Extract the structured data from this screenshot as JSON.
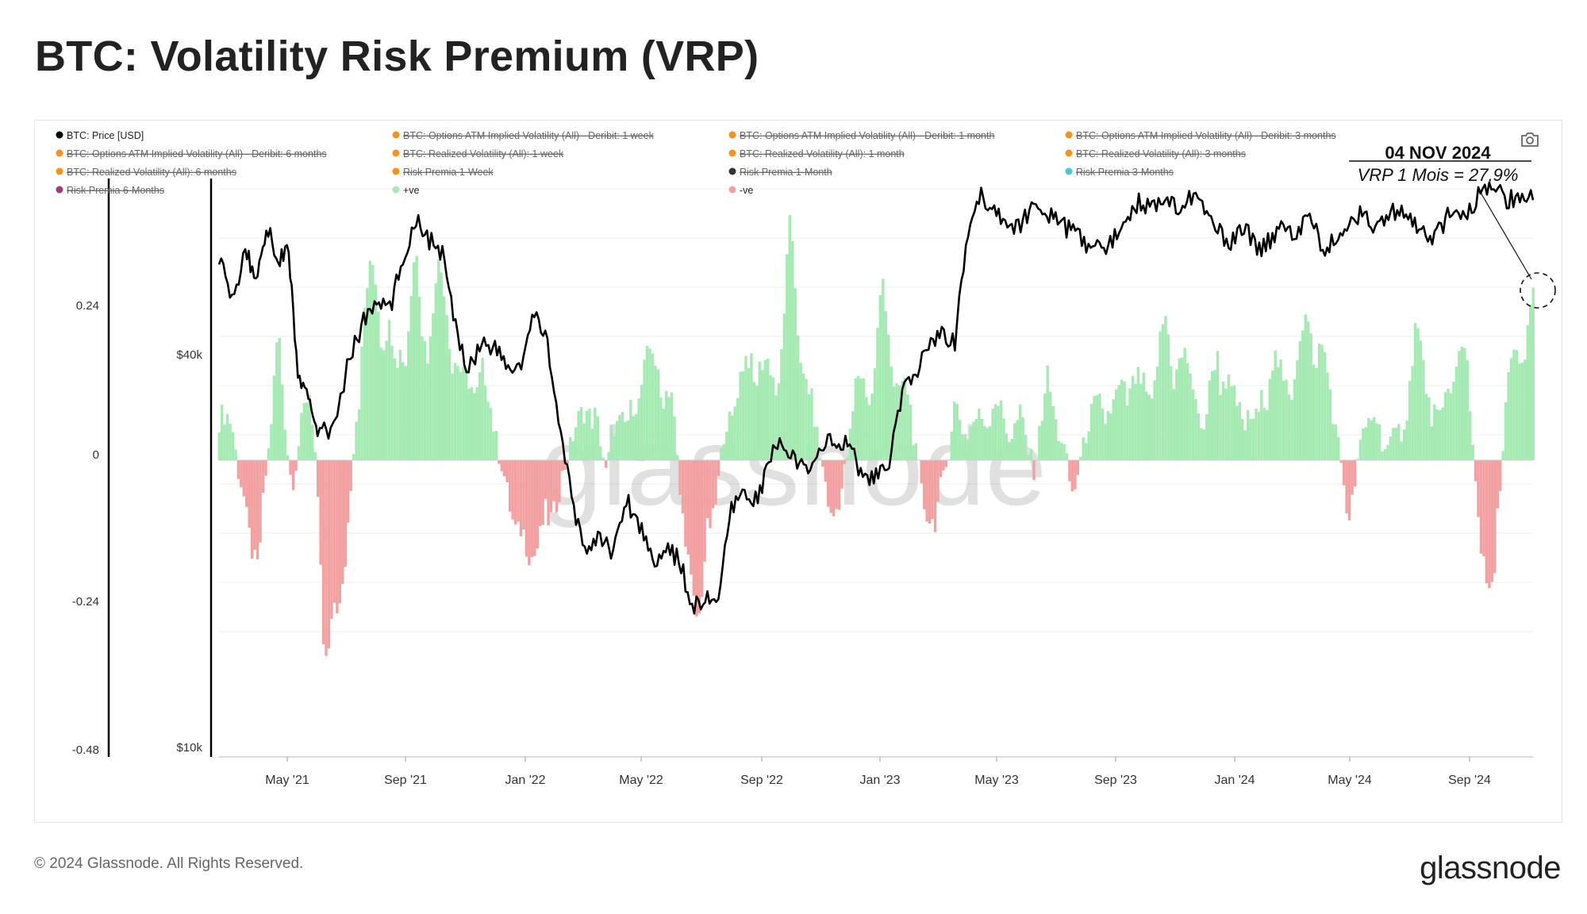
{
  "header": {
    "title": "BTC: Volatility Risk Premium (VRP)"
  },
  "footer": {
    "copyright": "© 2024 Glassnode. All Rights Reserved.",
    "logo_text": "glassnode"
  },
  "watermark": "glassnode",
  "toolbar": {
    "camera_icon": "camera-icon"
  },
  "colors": {
    "price": "#000000",
    "positive": "#a5eab3",
    "negative": "#f2a0a0",
    "legend_orange": "#f7931a",
    "legend_cyan": "#4dc4d8",
    "legend_purple": "#a03a7a",
    "grid": "#eeeeee"
  },
  "chart_data": {
    "type": "bar+line",
    "title": "BTC: Volatility Risk Premium (VRP)",
    "x_ticks": [
      "May '21",
      "Sep '21",
      "Jan '22",
      "May '22",
      "Sep '22",
      "Jan '23",
      "May '23",
      "Sep '23",
      "Jan '24",
      "May '24",
      "Sep '24"
    ],
    "y_left": {
      "ticks": [
        "0.24",
        "0",
        "-0.24",
        "-0.48"
      ],
      "range": [
        -0.48,
        0.48
      ]
    },
    "y_right": {
      "ticks": [
        "$40k",
        "$10k"
      ],
      "scale": "log"
    },
    "legend": [
      {
        "label": "BTC: Price [USD]",
        "color": "#000000",
        "active": true
      },
      {
        "label": "BTC: Options ATM Implied Volatility (All) - Deribit: 1 week",
        "color": "#f7931a",
        "active": false
      },
      {
        "label": "BTC: Options ATM Implied Volatility (All) - Deribit: 1 month",
        "color": "#f7931a",
        "active": false
      },
      {
        "label": "BTC: Options ATM Implied Volatility (All) - Deribit: 3 months",
        "color": "#f7931a",
        "active": false
      },
      {
        "label": "BTC: Options ATM Implied Volatility (All) - Deribit: 6 months",
        "color": "#f7931a",
        "active": false
      },
      {
        "label": "BTC: Realized Volatility (All): 1 week",
        "color": "#f7931a",
        "active": false
      },
      {
        "label": "BTC: Realized Volatility (All): 1 month",
        "color": "#f7931a",
        "active": false
      },
      {
        "label": "BTC: Realized Volatility (All): 3 months",
        "color": "#f7931a",
        "active": false
      },
      {
        "label": "BTC: Realized Volatility (All): 6 months",
        "color": "#f7931a",
        "active": false
      },
      {
        "label": "Risk Premia 1-Week",
        "color": "#f7931a",
        "active": false
      },
      {
        "label": "Risk Premia 1-Month",
        "color": "#333333",
        "active": false
      },
      {
        "label": "Risk Premia 3-Months",
        "color": "#4dc4d8",
        "active": false
      },
      {
        "label": "Risk Premia 6-Months",
        "color": "#a03a7a",
        "active": false
      },
      {
        "label": "+ve",
        "color": "#a5eab3",
        "active": true
      },
      {
        "label": "-ve",
        "color": "#f2a0a0",
        "active": true
      }
    ],
    "annotation": {
      "date": "04 NOV 2024",
      "text": "VRP 1 Mois = 27,9%",
      "value": 0.279
    },
    "vrp_series": {
      "t": [
        0,
        0.01,
        0.02,
        0.03,
        0.045,
        0.055,
        0.07,
        0.08,
        0.09,
        0.1,
        0.11,
        0.118,
        0.125,
        0.135,
        0.143,
        0.15,
        0.155,
        0.165,
        0.175,
        0.185,
        0.2,
        0.23,
        0.25,
        0.27,
        0.285,
        0.295,
        0.3,
        0.31,
        0.32,
        0.33,
        0.345,
        0.355,
        0.365,
        0.375,
        0.385,
        0.395,
        0.405,
        0.415,
        0.425,
        0.435,
        0.445,
        0.455,
        0.465,
        0.475,
        0.485,
        0.495,
        0.505,
        0.515,
        0.525,
        0.535,
        0.545,
        0.55,
        0.56,
        0.57,
        0.58,
        0.59,
        0.6,
        0.61,
        0.62,
        0.63,
        0.64,
        0.65,
        0.66,
        0.67,
        0.68,
        0.69,
        0.7,
        0.71,
        0.72,
        0.73,
        0.74,
        0.75,
        0.76,
        0.77,
        0.78,
        0.79,
        0.8,
        0.81,
        0.82,
        0.83,
        0.84,
        0.85,
        0.86,
        0.87,
        0.88,
        0.89,
        0.9,
        0.91,
        0.92,
        0.93,
        0.94,
        0.95,
        0.96,
        0.97,
        0.98,
        0.99,
        1.0
      ],
      "v": [
        0.1,
        0.05,
        -0.1,
        -0.17,
        0.2,
        -0.05,
        0.15,
        -0.3,
        -0.32,
        -0.04,
        0.25,
        0.3,
        0.26,
        0.15,
        0.25,
        0.32,
        0.2,
        0.3,
        0.25,
        0.12,
        0.15,
        -0.16,
        -0.12,
        0.05,
        0.1,
        -0.03,
        0.08,
        0.05,
        0.14,
        0.17,
        0.1,
        -0.18,
        -0.24,
        -0.12,
        0.06,
        0.12,
        0.18,
        0.15,
        0.14,
        0.36,
        0.16,
        0.04,
        -0.1,
        -0.04,
        0.13,
        0.12,
        0.27,
        0.14,
        0.1,
        -0.07,
        -0.1,
        -0.06,
        0.09,
        0.05,
        0.07,
        0.1,
        0.05,
        0.07,
        -0.02,
        0.13,
        0.05,
        -0.06,
        0.05,
        0.1,
        0.08,
        0.14,
        0.12,
        0.12,
        0.22,
        0.17,
        0.14,
        0.05,
        0.2,
        0.1,
        0.08,
        0.06,
        0.18,
        0.12,
        0.17,
        0.24,
        0.17,
        0.06,
        -0.1,
        0.05,
        0.07,
        0.02,
        0.05,
        0.21,
        0.12,
        0.05,
        0.19,
        0.15,
        -0.16,
        -0.21,
        0.12,
        0.18,
        0.279
      ]
    },
    "price_series_usd": {
      "t": [
        0,
        0.01,
        0.02,
        0.028,
        0.036,
        0.045,
        0.053,
        0.06,
        0.068,
        0.075,
        0.085,
        0.1,
        0.11,
        0.12,
        0.13,
        0.14,
        0.15,
        0.16,
        0.17,
        0.18,
        0.19,
        0.2,
        0.21,
        0.22,
        0.23,
        0.24,
        0.25,
        0.26,
        0.27,
        0.28,
        0.29,
        0.3,
        0.31,
        0.32,
        0.33,
        0.34,
        0.35,
        0.36,
        0.37,
        0.38,
        0.39,
        0.4,
        0.41,
        0.42,
        0.43,
        0.44,
        0.45,
        0.46,
        0.47,
        0.48,
        0.49,
        0.5,
        0.51,
        0.52,
        0.53,
        0.54,
        0.55,
        0.56,
        0.57,
        0.58,
        0.59,
        0.6,
        0.61,
        0.62,
        0.63,
        0.64,
        0.65,
        0.66,
        0.67,
        0.68,
        0.69,
        0.7,
        0.71,
        0.72,
        0.73,
        0.74,
        0.75,
        0.76,
        0.77,
        0.78,
        0.79,
        0.8,
        0.81,
        0.82,
        0.83,
        0.84,
        0.85,
        0.86,
        0.87,
        0.88,
        0.89,
        0.9,
        0.91,
        0.92,
        0.93,
        0.94,
        0.95,
        0.96,
        0.97,
        0.98,
        0.99,
        1.0
      ],
      "v": [
        57000,
        48000,
        58000,
        52000,
        63000,
        56000,
        58000,
        37000,
        34000,
        31000,
        30000,
        40000,
        45000,
        48000,
        47000,
        56000,
        65000,
        60000,
        57000,
        44000,
        38000,
        42000,
        41000,
        38000,
        38500,
        46000,
        42000,
        30000,
        23000,
        20000,
        21000,
        20000,
        24000,
        22000,
        19500,
        20000,
        19500,
        16500,
        16800,
        17000,
        23000,
        24500,
        24000,
        28000,
        29500,
        27000,
        26500,
        29500,
        29200,
        29000,
        26000,
        26000,
        27000,
        35000,
        37000,
        42000,
        43000,
        42000,
        62000,
        70000,
        67000,
        64000,
        62000,
        70000,
        66000,
        63000,
        62000,
        59000,
        58000,
        60000,
        65000,
        69000,
        67000,
        71000,
        67000,
        70000,
        66000,
        62000,
        59000,
        63000,
        58000,
        60000,
        64000,
        61000,
        65000,
        58000,
        60000,
        63000,
        67000,
        62000,
        65000,
        68000,
        63000,
        60000,
        62000,
        68000,
        65000,
        71000,
        72000,
        69000,
        70000,
        69000
      ]
    }
  }
}
